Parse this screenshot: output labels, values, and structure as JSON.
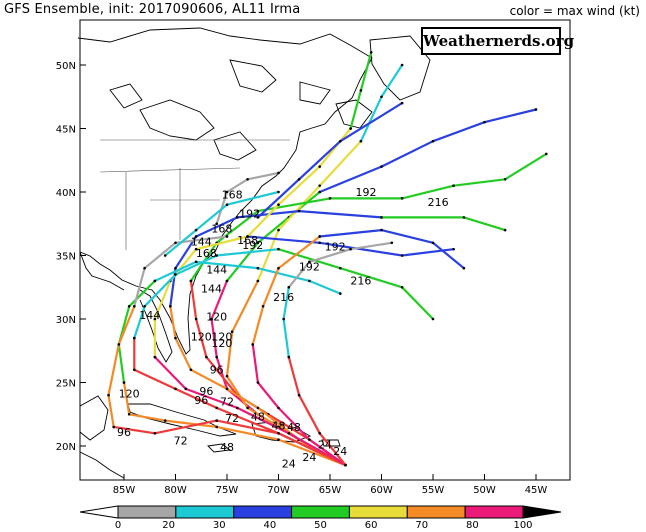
{
  "header": {
    "title": "GFS Ensemble, init: 2017090606, AL11 Irma",
    "legend_note": "color = max wind (kt)"
  },
  "watermark": "Weathernerds.org",
  "colors": {
    "gray": "#a6a6a6",
    "cyan": "#1ec9d6",
    "blue": "#2a40e0",
    "green": "#22cc22",
    "yellow": "#e8dc3a",
    "orange": "#f48a26",
    "red": "#ee3a3a",
    "magenta": "#ea1a78",
    "black": "#000000",
    "land_outline": "#000000"
  },
  "map": {
    "lon_ticks": [
      "85W",
      "80W",
      "75W",
      "70W",
      "65W",
      "60W",
      "55W",
      "50W",
      "45W"
    ],
    "lat_ticks": [
      "50N",
      "45N",
      "40N",
      "35N",
      "30N",
      "25N",
      "20N"
    ]
  },
  "colorbar": {
    "labels": [
      "0",
      "20",
      "30",
      "40",
      "50",
      "60",
      "70",
      "80",
      "100"
    ],
    "colors": [
      "#ffffff",
      "#a6a6a6",
      "#1ec9d6",
      "#2a40e0",
      "#22cc22",
      "#e8dc3a",
      "#f48a26",
      "#ea1a78",
      "#000000"
    ]
  },
  "track_labels": [
    {
      "text": "192",
      "lon": -61.5,
      "lat": 39.7
    },
    {
      "text": "216",
      "lon": -54.5,
      "lat": 38.9
    },
    {
      "text": "168",
      "lon": -74.5,
      "lat": 39.5
    },
    {
      "text": "192",
      "lon": -72.8,
      "lat": 38.0
    },
    {
      "text": "168",
      "lon": -75.5,
      "lat": 36.8
    },
    {
      "text": "168",
      "lon": -73.0,
      "lat": 35.9
    },
    {
      "text": "192",
      "lon": -72.5,
      "lat": 35.5
    },
    {
      "text": "144",
      "lon": -77.5,
      "lat": 35.8
    },
    {
      "text": "168",
      "lon": -77.0,
      "lat": 34.9
    },
    {
      "text": "192",
      "lon": -64.5,
      "lat": 35.4
    },
    {
      "text": "192",
      "lon": -67.0,
      "lat": 33.8
    },
    {
      "text": "216",
      "lon": -62.0,
      "lat": 32.7
    },
    {
      "text": "216",
      "lon": -69.5,
      "lat": 31.4
    },
    {
      "text": "144",
      "lon": -76.0,
      "lat": 33.6
    },
    {
      "text": "144",
      "lon": -76.5,
      "lat": 32.1
    },
    {
      "text": "144",
      "lon": -82.5,
      "lat": 30.0
    },
    {
      "text": "120",
      "lon": -76.0,
      "lat": 29.9
    },
    {
      "text": "120",
      "lon": -77.5,
      "lat": 28.3
    },
    {
      "text": "120",
      "lon": -75.5,
      "lat": 28.3
    },
    {
      "text": "120",
      "lon": -75.5,
      "lat": 27.8
    },
    {
      "text": "96",
      "lon": -76.0,
      "lat": 25.7
    },
    {
      "text": "120",
      "lon": -84.5,
      "lat": 23.8
    },
    {
      "text": "96",
      "lon": -77.0,
      "lat": 24.0
    },
    {
      "text": "96",
      "lon": -77.5,
      "lat": 23.3
    },
    {
      "text": "72",
      "lon": -75.0,
      "lat": 23.2
    },
    {
      "text": "72",
      "lon": -74.5,
      "lat": 21.9
    },
    {
      "text": "48",
      "lon": -72.0,
      "lat": 22.0
    },
    {
      "text": "48",
      "lon": -70.0,
      "lat": 21.3
    },
    {
      "text": "48",
      "lon": -68.5,
      "lat": 21.2
    },
    {
      "text": "96",
      "lon": -85.0,
      "lat": 20.8
    },
    {
      "text": "72",
      "lon": -79.5,
      "lat": 20.1
    },
    {
      "text": "48",
      "lon": -75.0,
      "lat": 19.6
    },
    {
      "text": "24",
      "lon": -65.5,
      "lat": 19.8
    },
    {
      "text": "24",
      "lon": -64.0,
      "lat": 19.3
    },
    {
      "text": "24",
      "lon": -67.0,
      "lat": 18.8
    },
    {
      "text": "24",
      "lon": -69.0,
      "lat": 18.3
    }
  ]
}
